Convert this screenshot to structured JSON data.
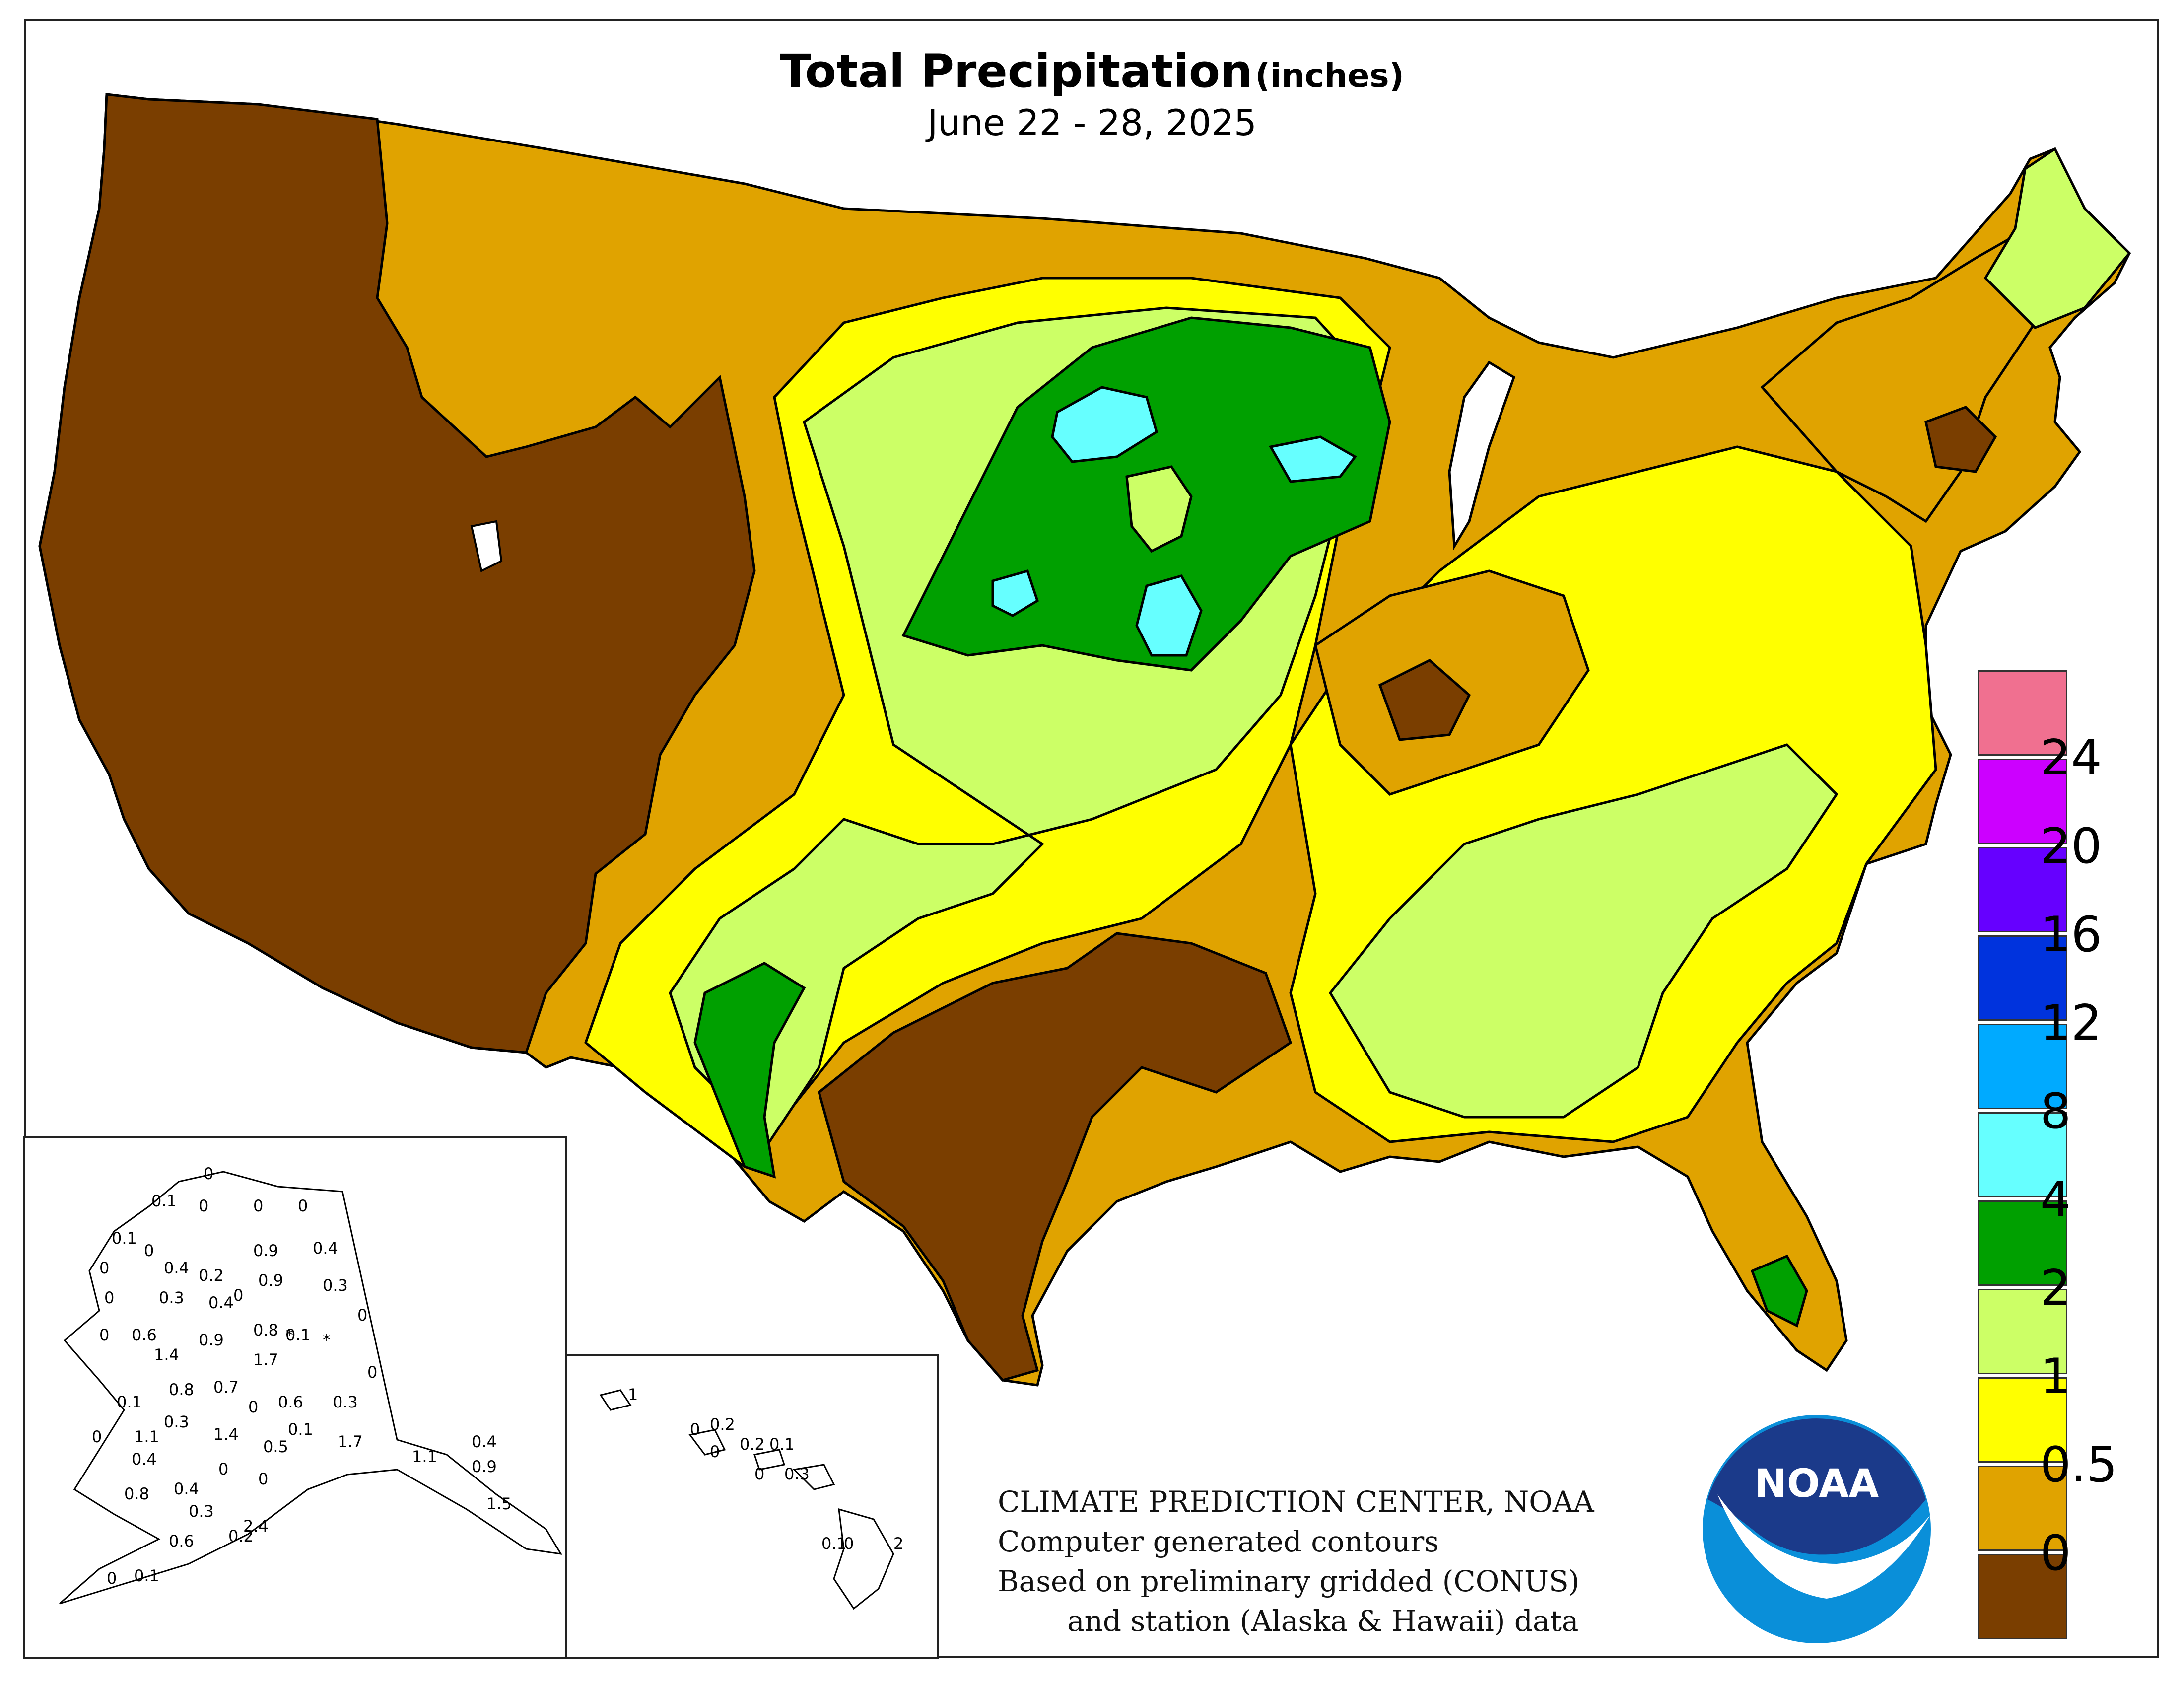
{
  "title": {
    "main": "Total Precipitation",
    "unit": "(inches)",
    "subtitle": "June 22 - 28, 2025"
  },
  "credits": {
    "line1": "CLIMATE PREDICTION CENTER, NOAA",
    "line2": "Computer generated contours",
    "line3": "Based on preliminary gridded (CONUS)",
    "line4": "and station (Alaska & Hawaii) data"
  },
  "logo": {
    "text": "NOAA",
    "colors": {
      "dark": "#1b3a8a",
      "light": "#0a8fd9"
    }
  },
  "legend": {
    "colors": [
      "#7a3e00",
      "#e0a300",
      "#ffff00",
      "#ccff66",
      "#00a000",
      "#66ffff",
      "#00aaff",
      "#0033dd",
      "#6600ff",
      "#cc00ff",
      "#f07090"
    ],
    "labels": [
      "0",
      "0.5",
      "1",
      "2",
      "4",
      "8",
      "12",
      "16",
      "20",
      "24"
    ]
  },
  "alaska_values": [
    "0",
    "0.1",
    "0",
    "0",
    "0",
    "0.1",
    "0",
    "0.9",
    "0.4",
    "0",
    "0.4",
    "0.2",
    "0.9",
    "0.3",
    "0",
    "0.3",
    "0.4",
    "0",
    "0",
    "0.6",
    "0.9",
    "0.8",
    "0.1",
    "0",
    "1.4",
    "1.7",
    "*",
    "*",
    "0",
    "0.1",
    "0.8",
    "0.7",
    "0",
    "0.6",
    "0.3",
    "0",
    "1.1",
    "0.3",
    "1.4",
    "0.1",
    "1.7",
    "0.4",
    "0.4",
    "0.5",
    "1.1",
    "0.9",
    "0",
    "0.8",
    "0.4",
    "0",
    "0.3",
    "1.5",
    "0.6",
    "2.4",
    "0",
    "0.1",
    "0.2"
  ],
  "hawaii_values": [
    "1",
    "0.2",
    "0",
    "0",
    "0.2",
    "0.1",
    "0.3",
    "0",
    "0.1",
    "0",
    "2"
  ]
}
